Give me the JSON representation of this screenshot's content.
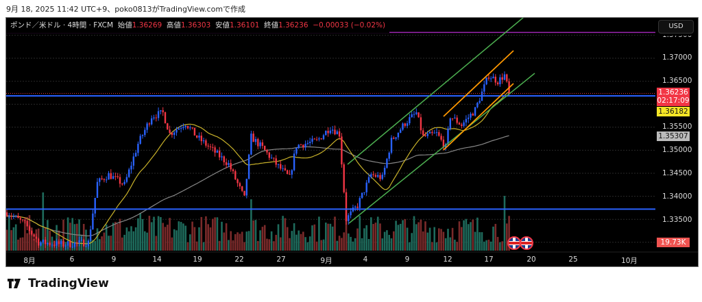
{
  "caption": "9月 18, 2025 11:42 UTC+9、poko0813がTradingView.comで作成",
  "legend": {
    "symbol": "ポンド／米ドル · 4時間 · FXCM",
    "open_label": "始値",
    "open": "1.36269",
    "high_label": "高値",
    "high": "1.36303",
    "low_label": "安値",
    "low": "1.36101",
    "close_label": "終値",
    "close": "1.36236",
    "change": "−0.00033 (−0.02%)"
  },
  "currency_button": "USD",
  "price_axis": [
    "1.37500",
    "1.37000",
    "1.36500",
    "1.35500",
    "1.35000",
    "1.34500",
    "1.34000",
    "1.33500"
  ],
  "tags": {
    "last_price": "1.36236",
    "countdown": "02:17:09",
    "horizontal_line": "1.36182",
    "ma_value": "1.35307",
    "volume": "19.73K"
  },
  "time_axis": [
    "8月",
    "6",
    "9",
    "14",
    "19",
    "22",
    "27",
    "9月",
    "4",
    "9",
    "12",
    "17",
    "20",
    "25",
    "10月"
  ],
  "logo_text": "TradingView",
  "colors": {
    "up": "#2962ff",
    "down": "#f23645",
    "vol_up": "#1e6b5c",
    "vol_down": "#7a2a2a",
    "ma_fast": "#c9b22a",
    "ma_slow": "#888888",
    "hline": "#2962ff",
    "resistance": "#9c27b0",
    "channel": "#4caf50",
    "sub_channel": "#ff9800"
  },
  "chart_data": {
    "type": "candlestick",
    "symbol": "GBPUSD",
    "timeframe": "4h",
    "ylim": [
      1.331,
      1.376
    ],
    "waypoints_bar_price": [
      [
        0,
        1.3365
      ],
      [
        8,
        1.334
      ],
      [
        14,
        1.33
      ],
      [
        25,
        1.3295
      ],
      [
        36,
        1.33
      ],
      [
        40,
        1.3429
      ],
      [
        45,
        1.3447
      ],
      [
        52,
        1.3425
      ],
      [
        58,
        1.3514
      ],
      [
        64,
        1.3574
      ],
      [
        69,
        1.3581
      ],
      [
        72,
        1.3536
      ],
      [
        79,
        1.3559
      ],
      [
        84,
        1.3529
      ],
      [
        91,
        1.35
      ],
      [
        98,
        1.347
      ],
      [
        105,
        1.3395
      ],
      [
        108,
        1.3529
      ],
      [
        113,
        1.3505
      ],
      [
        119,
        1.347
      ],
      [
        125,
        1.344
      ],
      [
        128,
        1.351
      ],
      [
        137,
        1.352
      ],
      [
        143,
        1.355
      ],
      [
        147,
        1.3535
      ],
      [
        150,
        1.335
      ],
      [
        155,
        1.338
      ],
      [
        161,
        1.3447
      ],
      [
        166,
        1.344
      ],
      [
        170,
        1.3521
      ],
      [
        176,
        1.3559
      ],
      [
        181,
        1.3581
      ],
      [
        184,
        1.3529
      ],
      [
        190,
        1.3536
      ],
      [
        194,
        1.3506
      ],
      [
        196,
        1.3574
      ],
      [
        201,
        1.3555
      ],
      [
        207,
        1.3588
      ],
      [
        213,
        1.3663
      ],
      [
        217,
        1.365
      ],
      [
        220,
        1.3663
      ],
      [
        222,
        1.3624
      ]
    ],
    "horizontal_lines": [
      1.3756,
      1.36182,
      1.3372
    ],
    "indicators": [
      "SMA 20",
      "SMA 75",
      "Volume"
    ]
  }
}
